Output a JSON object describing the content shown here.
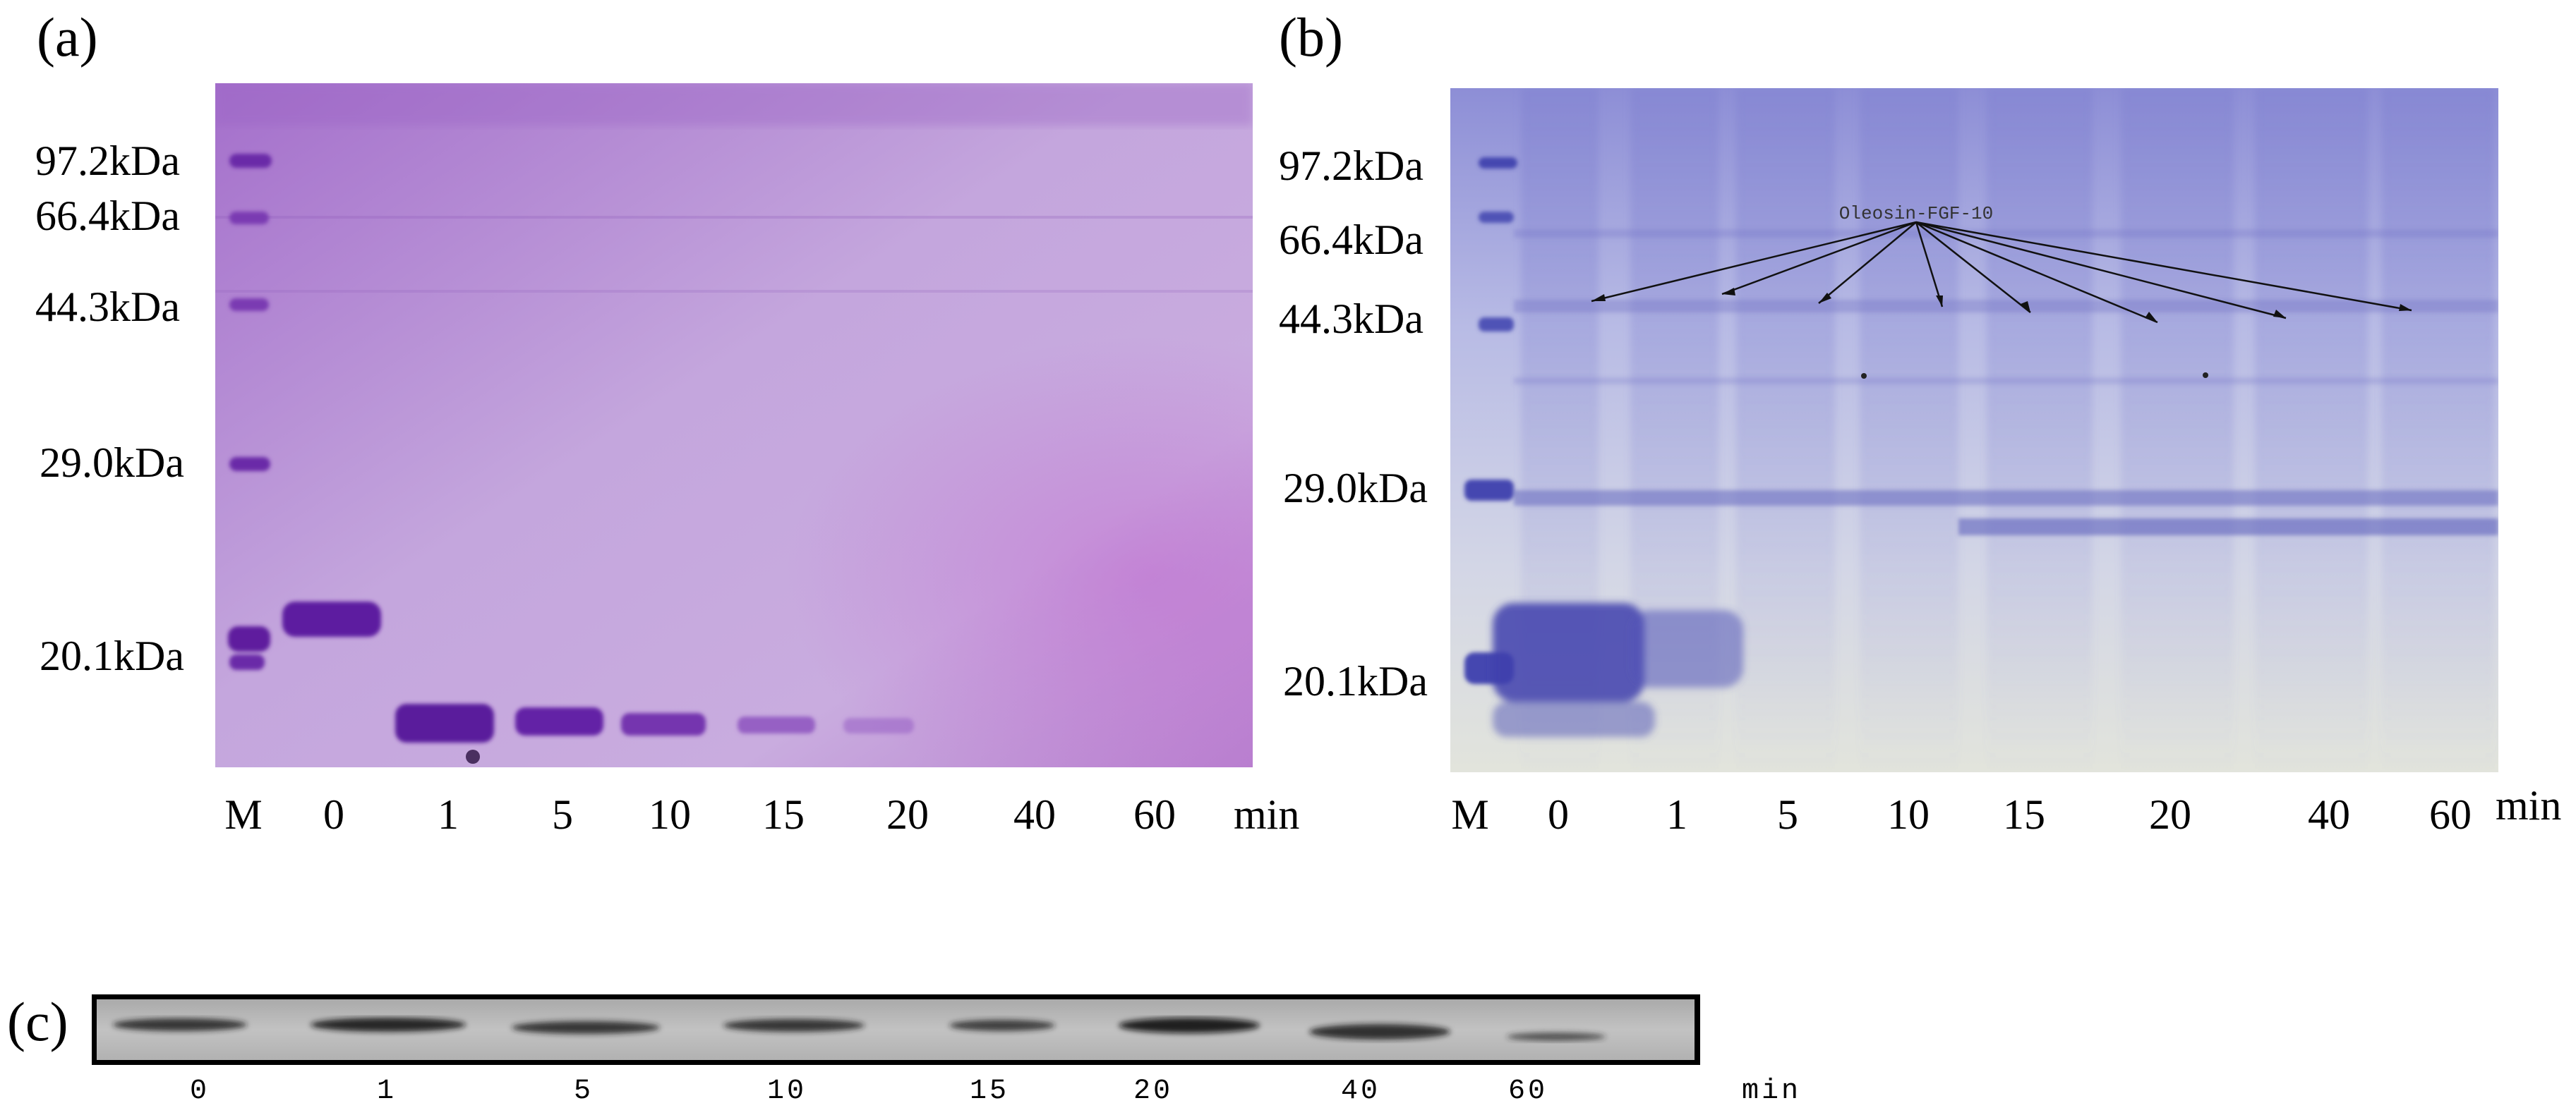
{
  "panels": {
    "a": {
      "label": "(a)",
      "marker_labels": [
        "97.2kDa",
        "66.4kDa",
        "44.3kDa",
        "29.0kDa",
        "20.1kDa"
      ],
      "lane_labels": [
        "M",
        "0",
        "1",
        "5",
        "10",
        "15",
        "20",
        "40",
        "60"
      ],
      "unit": "min",
      "gel_color": "#b07fd0"
    },
    "b": {
      "label": "(b)",
      "marker_labels": [
        "97.2kDa",
        "66.4kDa",
        "44.3kDa",
        "29.0kDa",
        "20.1kDa"
      ],
      "lane_labels": [
        "M",
        "0",
        "1",
        "5",
        "10",
        "15",
        "20",
        "40",
        "60"
      ],
      "unit": "min",
      "annotation": "Oleosin-FGF-10",
      "gel_color": "#c9cbe8"
    },
    "c": {
      "label": "(c)",
      "lane_labels": [
        "0",
        "1",
        "5",
        "10",
        "15",
        "20",
        "40",
        "60"
      ],
      "unit": "min",
      "blot_color": "#bdbdbd"
    }
  }
}
